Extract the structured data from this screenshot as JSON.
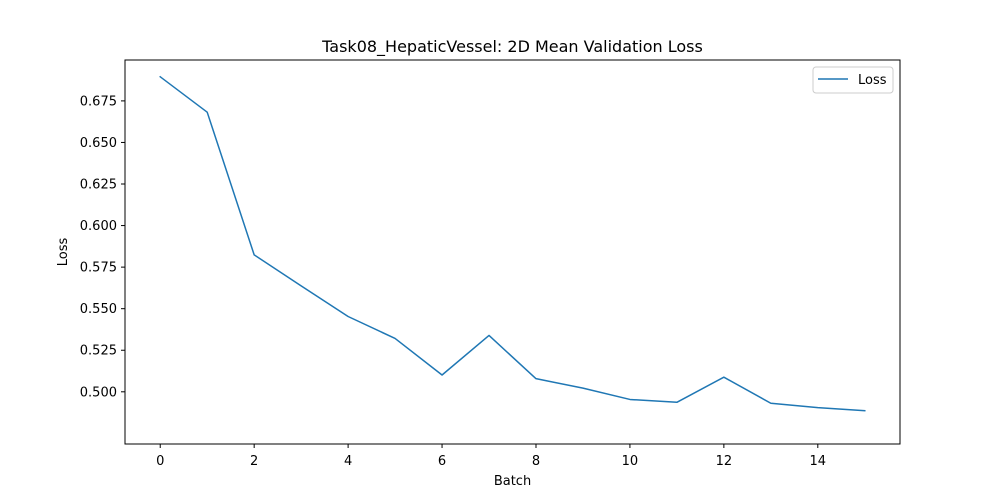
{
  "chart_data": {
    "type": "line",
    "title": "Task08_HepaticVessel: 2D Mean Validation Loss",
    "xlabel": "Batch",
    "ylabel": "Loss",
    "x": [
      0,
      1,
      2,
      3,
      4,
      5,
      6,
      7,
      8,
      9,
      10,
      11,
      12,
      13,
      14,
      15
    ],
    "series": [
      {
        "name": "Loss",
        "color": "#1f77b4",
        "values": [
          0.6895,
          0.6682,
          0.5824,
          0.5637,
          0.5453,
          0.5321,
          0.5101,
          0.5339,
          0.5079,
          0.5022,
          0.4954,
          0.4937,
          0.5088,
          0.4931,
          0.4905,
          0.4886
        ]
      }
    ],
    "xlim": [
      -0.75,
      15.75
    ],
    "ylim": [
      0.4686,
      0.6996
    ],
    "xticks": [
      0,
      2,
      4,
      6,
      8,
      10,
      12,
      14
    ],
    "xtick_labels": [
      "0",
      "2",
      "4",
      "6",
      "8",
      "10",
      "12",
      "14"
    ],
    "yticks": [
      0.5,
      0.525,
      0.55,
      0.575,
      0.6,
      0.625,
      0.65,
      0.675
    ],
    "ytick_labels": [
      "0.500",
      "0.525",
      "0.550",
      "0.575",
      "0.600",
      "0.625",
      "0.650",
      "0.675"
    ],
    "grid": false,
    "legend_position": "top-right"
  }
}
